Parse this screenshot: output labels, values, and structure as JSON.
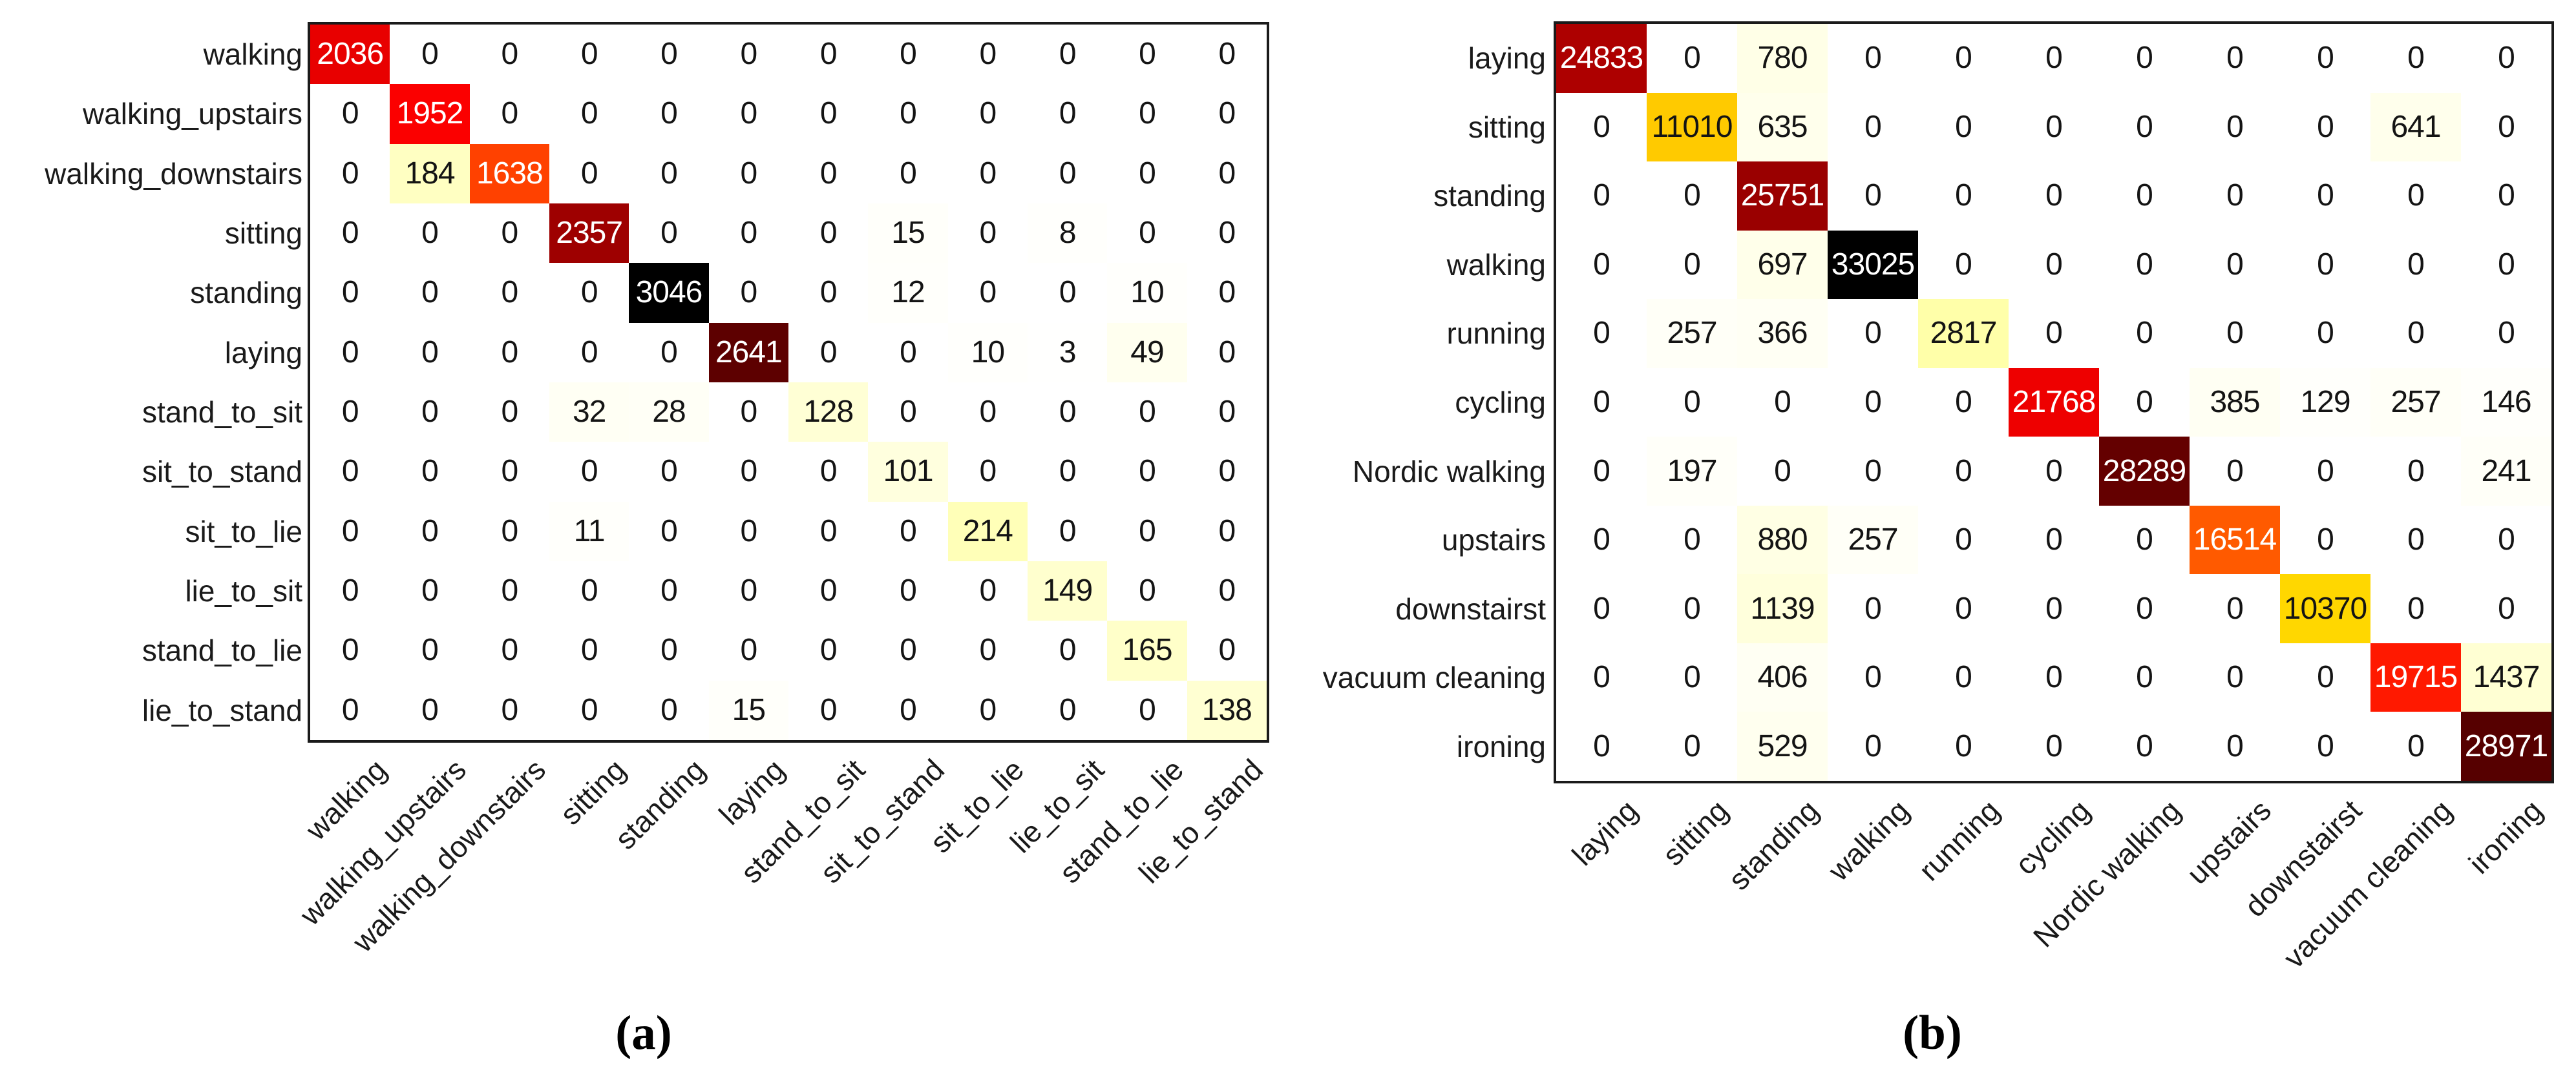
{
  "figure": {
    "description": "Two confusion matrix heatmaps side by side",
    "background": "#ffffff"
  },
  "colors": {
    "background": "#ffffff",
    "axis_border": "#1a1a1a",
    "label_text": "#1a1a1a",
    "cell_text_dark": "#141414",
    "cell_text_light": "#ffffff"
  },
  "chart_data": [
    {
      "type": "heatmap",
      "panel": "a",
      "caption": "(a)",
      "colormap": "hot_r",
      "vmin": 0,
      "vmax": 3046,
      "legend": "none",
      "grid": false,
      "labels": [
        "walking",
        "walking_upstairs",
        "walking_downstairs",
        "sitting",
        "standing",
        "laying",
        "stand_to_sit",
        "sit_to_stand",
        "sit_to_lie",
        "lie_to_sit",
        "stand_to_lie",
        "lie_to_stand"
      ],
      "rows": [
        [
          2036,
          0,
          0,
          0,
          0,
          0,
          0,
          0,
          0,
          0,
          0,
          0
        ],
        [
          0,
          1952,
          0,
          0,
          0,
          0,
          0,
          0,
          0,
          0,
          0,
          0
        ],
        [
          0,
          184,
          1638,
          0,
          0,
          0,
          0,
          0,
          0,
          0,
          0,
          0
        ],
        [
          0,
          0,
          0,
          2357,
          0,
          0,
          0,
          15,
          0,
          8,
          0,
          0
        ],
        [
          0,
          0,
          0,
          0,
          3046,
          0,
          0,
          12,
          0,
          0,
          10,
          0
        ],
        [
          0,
          0,
          0,
          0,
          0,
          2641,
          0,
          0,
          10,
          3,
          49,
          0
        ],
        [
          0,
          0,
          0,
          32,
          28,
          0,
          128,
          0,
          0,
          0,
          0,
          0
        ],
        [
          0,
          0,
          0,
          0,
          0,
          0,
          0,
          101,
          0,
          0,
          0,
          0
        ],
        [
          0,
          0,
          0,
          11,
          0,
          0,
          0,
          0,
          214,
          0,
          0,
          0
        ],
        [
          0,
          0,
          0,
          0,
          0,
          0,
          0,
          0,
          0,
          149,
          0,
          0
        ],
        [
          0,
          0,
          0,
          0,
          0,
          0,
          0,
          0,
          0,
          0,
          165,
          0
        ],
        [
          0,
          0,
          0,
          0,
          0,
          15,
          0,
          0,
          0,
          0,
          0,
          138
        ]
      ]
    },
    {
      "type": "heatmap",
      "panel": "b",
      "caption": "(b)",
      "colormap": "hot_r",
      "vmin": 0,
      "vmax": 33025,
      "legend": "none",
      "grid": false,
      "labels": [
        "laying",
        "sitting",
        "standing",
        "walking",
        "running",
        "cycling",
        "Nordic walking",
        "upstairs",
        "downstairst",
        "vacuum cleaning",
        "ironing"
      ],
      "rows": [
        [
          24833,
          0,
          780,
          0,
          0,
          0,
          0,
          0,
          0,
          0,
          0
        ],
        [
          0,
          11010,
          635,
          0,
          0,
          0,
          0,
          0,
          0,
          641,
          0
        ],
        [
          0,
          0,
          25751,
          0,
          0,
          0,
          0,
          0,
          0,
          0,
          0
        ],
        [
          0,
          0,
          697,
          33025,
          0,
          0,
          0,
          0,
          0,
          0,
          0
        ],
        [
          0,
          257,
          366,
          0,
          2817,
          0,
          0,
          0,
          0,
          0,
          0
        ],
        [
          0,
          0,
          0,
          0,
          0,
          21768,
          0,
          385,
          129,
          257,
          146
        ],
        [
          0,
          197,
          0,
          0,
          0,
          0,
          28289,
          0,
          0,
          0,
          241
        ],
        [
          0,
          0,
          880,
          257,
          0,
          0,
          0,
          16514,
          0,
          0,
          0
        ],
        [
          0,
          0,
          1139,
          0,
          0,
          0,
          0,
          0,
          10370,
          0,
          0
        ],
        [
          0,
          0,
          406,
          0,
          0,
          0,
          0,
          0,
          0,
          19715,
          1437
        ],
        [
          0,
          0,
          529,
          0,
          0,
          0,
          0,
          0,
          0,
          0,
          28971
        ]
      ]
    }
  ]
}
